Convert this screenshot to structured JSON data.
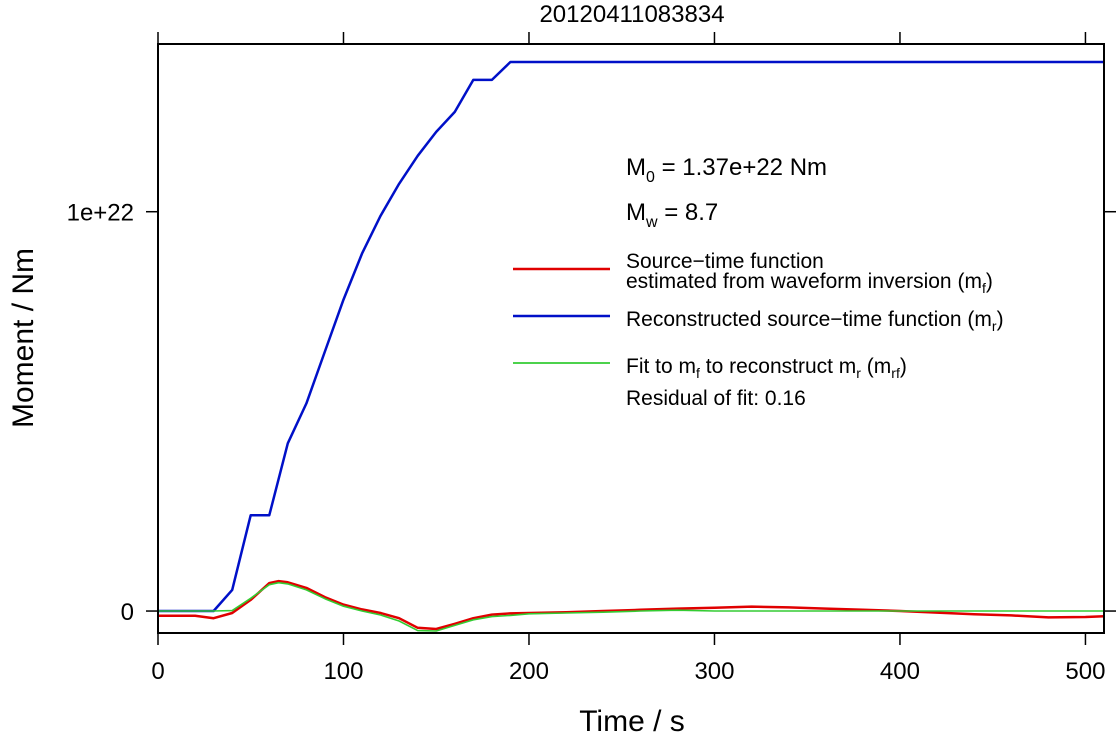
{
  "chart_data": {
    "type": "line",
    "title": "20120411083834",
    "xlabel": "Time / s",
    "ylabel": "Moment / Nm",
    "xlim": [
      0,
      510
    ],
    "ylim": [
      -5.5e+20,
      1.42e+22
    ],
    "x_ticks": [
      0,
      100,
      200,
      300,
      400,
      500
    ],
    "x_tick_labels": [
      "0",
      "100",
      "200",
      "300",
      "400",
      "500"
    ],
    "y_ticks": [
      0,
      1e+22
    ],
    "y_tick_labels": [
      "0",
      "1e+22"
    ],
    "grid": false,
    "annotations": {
      "m0": {
        "sym": "M",
        "sub": "0",
        "text": " = 1.37e+22 Nm"
      },
      "mw": {
        "sym": "M",
        "sub": "w",
        "text": " = 8.7"
      },
      "residual": "Residual of fit: 0.16"
    },
    "legend": {
      "placement": "right",
      "entries": [
        {
          "line1": "Source−time function",
          "line2": "estimated from waveform inversion (m",
          "sub": "f",
          "after": ")",
          "color": "#e00000"
        },
        {
          "text": "Reconstructed source−time function (m",
          "sub": "r",
          "after": ")",
          "color": "#0010c8"
        },
        {
          "pre": "Fit to m",
          "sub1": "f",
          "mid": " to reconstruct m",
          "sub2": "r",
          "mid2": " (m",
          "sub3": "rf",
          "after": ")",
          "color": "#33cc33"
        }
      ]
    },
    "series": [
      {
        "name": "Reconstructed source−time function (m_r)",
        "color": "#0010c8",
        "x": [
          0,
          10,
          20,
          30,
          40,
          50,
          60,
          70,
          80,
          90,
          100,
          110,
          120,
          130,
          140,
          150,
          160,
          170,
          180,
          190,
          200,
          300,
          400,
          510
        ],
        "y": [
          0,
          0,
          0,
          0,
          5.3e+20,
          2.4e+21,
          2.4e+21,
          4.2e+21,
          5.2e+21,
          6.5e+21,
          7.8e+21,
          8.95e+21,
          9.9e+21,
          1.07e+22,
          1.14e+22,
          1.2e+22,
          1.25e+22,
          1.33e+22,
          1.33e+22,
          1.375e+22,
          1.375e+22,
          1.375e+22,
          1.375e+22,
          1.375e+22
        ]
      },
      {
        "name": "Source−time function estimated from waveform inversion (m_f)",
        "color": "#e00000",
        "x": [
          0,
          10,
          20,
          30,
          40,
          50,
          60,
          65,
          70,
          80,
          90,
          100,
          110,
          120,
          130,
          140,
          150,
          160,
          170,
          180,
          190,
          200,
          220,
          240,
          260,
          280,
          300,
          320,
          340,
          360,
          380,
          400,
          420,
          440,
          460,
          480,
          500,
          510
        ],
        "y": [
          -1.2e+20,
          -1.2e+20,
          -1.2e+20,
          -1.8e+20,
          -5e+19,
          2.8e+20,
          7e+20,
          7.5e+20,
          7.2e+20,
          5.8e+20,
          3.5e+20,
          1.6e+20,
          4e+19,
          -5e+19,
          -1.8e+20,
          -4.2e+20,
          -4.5e+20,
          -3.2e+20,
          -1.8e+20,
          -9e+19,
          -6e+19,
          -5e+19,
          -3e+19,
          0,
          3e+19,
          6e+19,
          8e+19,
          1.1e+20,
          9e+19,
          6e+19,
          3e+19,
          0,
          -4e+19,
          -8e+19,
          -1.1e+20,
          -1.6e+20,
          -1.5e+20,
          -1.3e+20
        ]
      },
      {
        "name": "Fit to m_f to reconstruct m_r (m_rf)",
        "color": "#33cc33",
        "x": [
          0,
          10,
          20,
          30,
          40,
          50,
          60,
          65,
          70,
          80,
          90,
          100,
          110,
          120,
          130,
          140,
          150,
          160,
          170,
          180,
          190,
          200,
          220,
          240,
          260,
          280,
          300,
          320,
          340,
          360,
          380,
          400,
          420,
          440,
          460,
          480,
          500,
          510
        ],
        "y": [
          0,
          0,
          0,
          0,
          1e+19,
          3.2e+20,
          6.6e+20,
          7.1e+20,
          6.8e+20,
          5.3e+20,
          3.1e+20,
          1.2e+20,
          0,
          -1e+20,
          -2.5e+20,
          -4.9e+20,
          -5e+20,
          -3.6e+20,
          -2.2e+20,
          -1.4e+20,
          -1.1e+20,
          -7e+19,
          -5e+19,
          -3e+19,
          0,
          2e+19,
          0,
          0,
          0,
          0,
          0,
          0,
          0,
          0,
          0,
          0,
          0,
          0
        ]
      }
    ]
  }
}
